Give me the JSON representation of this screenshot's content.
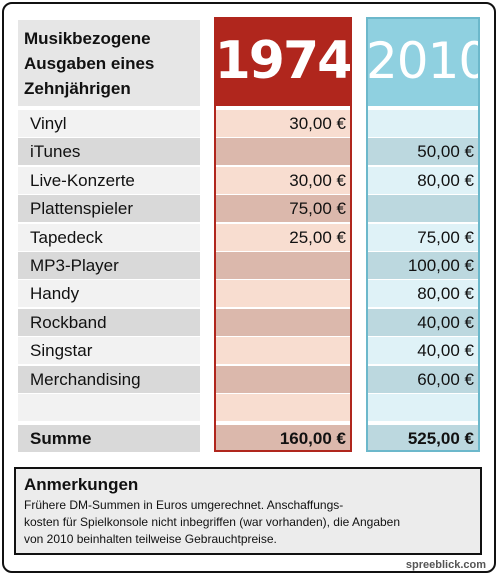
{
  "header": {
    "label_lines": [
      "Musikbezogene",
      "Ausgaben eines",
      "Zehnjährigen"
    ],
    "col_a": "1974",
    "col_b": "2010"
  },
  "colors": {
    "col_a": "#b0261d",
    "col_b": "#8fd0e0"
  },
  "rows": [
    {
      "label": "Vinyl",
      "a": "30,00 €",
      "b": ""
    },
    {
      "label": "iTunes",
      "a": "",
      "b": "50,00 €"
    },
    {
      "label": "Live-Konzerte",
      "a": "30,00 €",
      "b": "80,00 €"
    },
    {
      "label": "Plattenspieler",
      "a": "75,00 €",
      "b": ""
    },
    {
      "label": "Tapedeck",
      "a": "25,00 €",
      "b": "75,00 €"
    },
    {
      "label": "MP3-Player",
      "a": "",
      "b": "100,00 €"
    },
    {
      "label": "Handy",
      "a": "",
      "b": "80,00 €"
    },
    {
      "label": "Rockband",
      "a": "",
      "b": "40,00 €"
    },
    {
      "label": "Singstar",
      "a": "",
      "b": "40,00 €"
    },
    {
      "label": "Merchandising",
      "a": "",
      "b": "60,00 €"
    },
    {
      "label": "",
      "a": "",
      "b": ""
    }
  ],
  "sum": {
    "label": "Summe",
    "a": "160,00 €",
    "b": "525,00 €"
  },
  "notes": {
    "title": "Anmerkungen",
    "lines": [
      "Frühere DM-Summen in Euros umgerechnet. Anschaffungs-",
      "kosten für Spielkonsole nicht inbegriffen (war vorhanden), die Angaben",
      "von 2010 beinhalten teilweise Gebrauchtpreise."
    ]
  },
  "credit": "spreeblick.com"
}
